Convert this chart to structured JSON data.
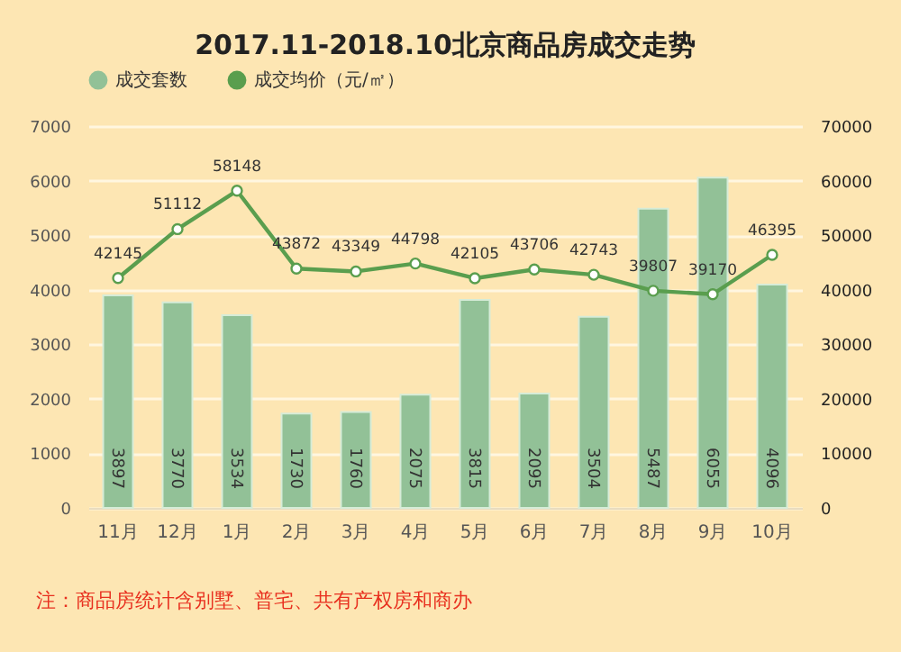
{
  "chart_data": {
    "type": "bar",
    "title": "2017.11-2018.10北京商品房成交走势",
    "categories": [
      "11月",
      "12月",
      "1月",
      "2月",
      "3月",
      "4月",
      "5月",
      "6月",
      "7月",
      "8月",
      "9月",
      "10月"
    ],
    "series": [
      {
        "name": "成交套数",
        "color": "#92c197",
        "values": [
          3897,
          3770,
          3534,
          1730,
          1760,
          2075,
          3815,
          2095,
          3504,
          5487,
          6055,
          4096
        ]
      },
      {
        "name": "成交均价（元/㎡）",
        "type": "line",
        "axis": "y2",
        "color": "#5a9e4e",
        "marker": "circle",
        "values": [
          42145,
          51112,
          58148,
          43872,
          43349,
          44798,
          42105,
          43706,
          42743,
          39807,
          39170,
          46395
        ]
      }
    ],
    "ylim": [
      0,
      7000
    ],
    "yticks": [
      0,
      1000,
      2000,
      3000,
      4000,
      5000,
      6000,
      7000
    ],
    "y2lim": [
      0,
      70000
    ],
    "y2ticks": [
      0,
      10000,
      20000,
      30000,
      40000,
      50000,
      60000,
      70000
    ],
    "grid": "y",
    "legend": "top",
    "data_labels": true,
    "annotations": [
      "注：商品房统计含别墅、普宅、共有产权房和商办"
    ]
  }
}
